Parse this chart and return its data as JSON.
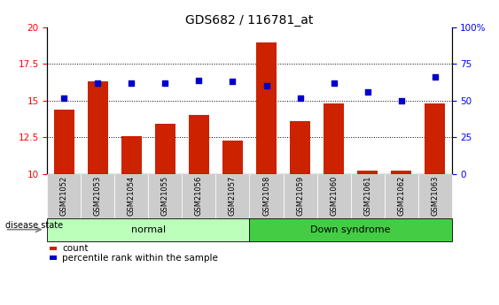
{
  "title": "GDS682 / 116781_at",
  "samples": [
    "GSM21052",
    "GSM21053",
    "GSM21054",
    "GSM21055",
    "GSM21056",
    "GSM21057",
    "GSM21058",
    "GSM21059",
    "GSM21060",
    "GSM21061",
    "GSM21062",
    "GSM21063"
  ],
  "count_values": [
    14.4,
    16.3,
    12.6,
    13.4,
    14.0,
    12.3,
    19.0,
    13.6,
    14.8,
    10.2,
    10.2,
    14.8
  ],
  "percentile_values": [
    52,
    62,
    62,
    62,
    64,
    63,
    60,
    52,
    62,
    56,
    50,
    66
  ],
  "ylim_left": [
    10,
    20
  ],
  "ylim_right": [
    0,
    100
  ],
  "yticks_left": [
    10,
    12.5,
    15,
    17.5,
    20
  ],
  "yticks_right": [
    0,
    25,
    50,
    75,
    100
  ],
  "ytick_labels_right": [
    "0",
    "25",
    "50",
    "75",
    "100%"
  ],
  "ytick_labels_left": [
    "10",
    "12.5",
    "15",
    "17.5",
    "20"
  ],
  "grid_values": [
    12.5,
    15.0,
    17.5
  ],
  "bar_color": "#cc2200",
  "dot_color": "#0000cc",
  "normal_label": "normal",
  "down_label": "Down syndrome",
  "normal_bg": "#bbffbb",
  "down_bg": "#44cc44",
  "label_area_bg": "#cccccc",
  "disease_state_label": "disease state",
  "legend_count": "count",
  "legend_percentile": "percentile rank within the sample",
  "bar_width": 0.6,
  "title_fontsize": 10,
  "tick_fontsize": 7.5,
  "sample_fontsize": 6,
  "group_fontsize": 8,
  "legend_fontsize": 7.5
}
